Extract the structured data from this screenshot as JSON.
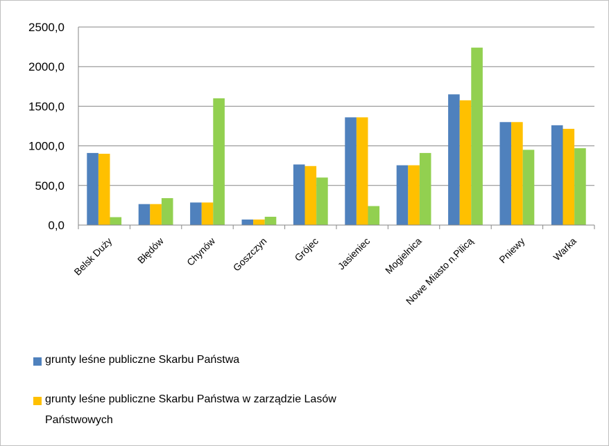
{
  "chart_data": {
    "type": "bar",
    "categories": [
      "Belsk Duży",
      "Błędów",
      "Chynów",
      "Goszczyn",
      "Grójec",
      "Jasieniec",
      "Mogielnica",
      "Nowe Miasto n.Pilicą",
      "Pniewy",
      "Warka"
    ],
    "series": [
      {
        "name": "grunty leśne publiczne Skarbu Państwa",
        "color": "#4f81bd",
        "values": [
          910,
          265,
          285,
          70,
          765,
          1360,
          755,
          1650,
          1300,
          1260
        ]
      },
      {
        "name": "grunty leśne publiczne Skarbu Państwa w zarządzie Lasów Państwowych",
        "color": "#ffc000",
        "values": [
          900,
          265,
          285,
          70,
          745,
          1360,
          755,
          1575,
          1300,
          1215
        ]
      },
      {
        "name": "",
        "color": "#92d050",
        "values": [
          100,
          340,
          1600,
          105,
          600,
          240,
          910,
          2240,
          950,
          970
        ]
      }
    ],
    "ylim": [
      0,
      2500
    ],
    "yticks": [
      "0,0",
      "500,0",
      "1000,0",
      "1500,0",
      "2000,0",
      "2500,0"
    ],
    "ytick_values": [
      0,
      500,
      1000,
      1500,
      2000,
      2500
    ],
    "grid": true,
    "legend_position": "bottom-left"
  },
  "legend": {
    "item1": "grunty leśne publiczne Skarbu Państwa",
    "item2_line1": "grunty leśne publiczne Skarbu Państwa w zarządzie Lasów",
    "item2_line2": "Państwowych"
  }
}
